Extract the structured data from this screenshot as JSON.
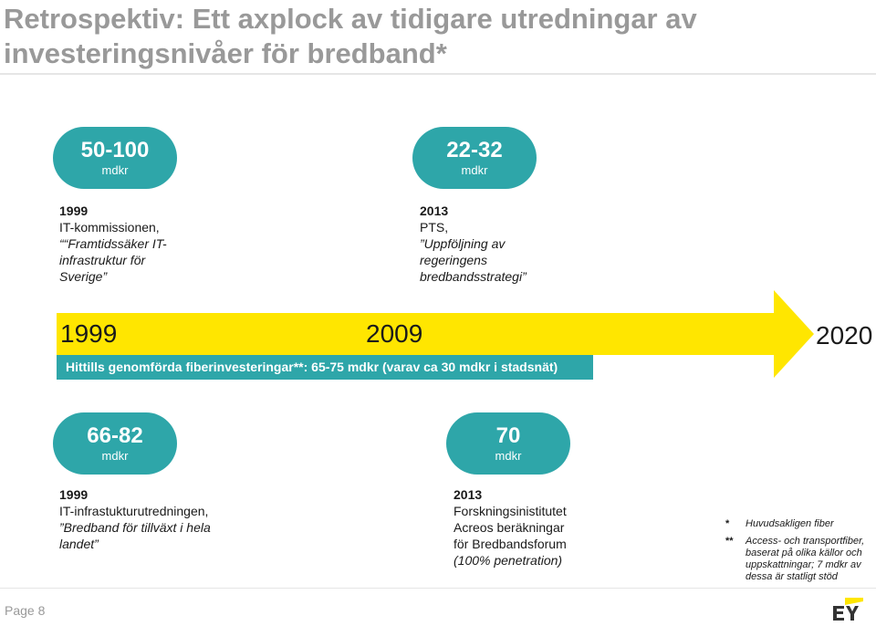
{
  "title": "Retrospektiv: Ett axplock av tidigare utredningar av investeringsnivåer för bredband*",
  "estimates_top": [
    {
      "value": "50-100",
      "unit": "mdkr",
      "year": "1999",
      "lines": [
        "IT-kommissionen,",
        "““Framtidssäker IT-",
        "infrastruktur för",
        "Sverige”"
      ]
    },
    {
      "value": "22-32",
      "unit": "mdkr",
      "year": "2013",
      "lines": [
        "PTS,",
        "”Uppföljning av",
        "regeringens",
        "bredbandsstrategi”"
      ]
    }
  ],
  "timeline": {
    "year_start": "1999",
    "year_mid": "2009",
    "year_end": "2020",
    "bar_text": "Hittills genomförda fiberinvesteringar**: 65-75 mdkr (varav ca 30 mdkr i stadsnät)"
  },
  "estimates_bottom": [
    {
      "value": "66-82",
      "unit": "mdkr",
      "year": "1999",
      "lines": [
        "IT-infrastukturutredningen,",
        "”Bredband för tillväxt i hela",
        "landet”"
      ]
    },
    {
      "value": "70",
      "unit": "mdkr",
      "year": "2013",
      "lines": [
        "Forskningsinistitutet",
        "Acreos beräkningar",
        "för Bredbandsforum",
        "(100% penetration)"
      ]
    }
  ],
  "footnotes": [
    {
      "mark": "*",
      "text": "Huvudsakligen fiber"
    },
    {
      "mark": "**",
      "text": "Access- och transportfiber, baserat på olika källor och uppskattningar; 7 mdkr av dessa är statligt stöd"
    }
  ],
  "footer": {
    "page": "Page 8",
    "logo_text": "EY"
  },
  "colors": {
    "teal": "#2ea6a9",
    "yellow": "#ffe600",
    "title_gray": "#999999"
  }
}
